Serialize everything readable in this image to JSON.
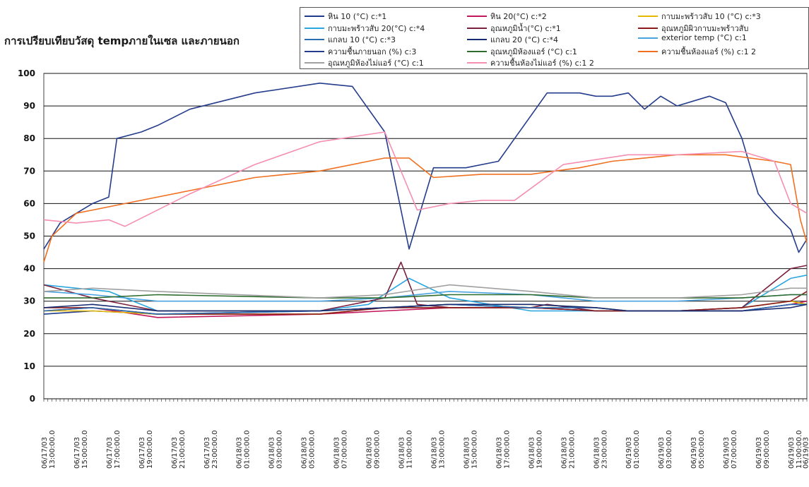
{
  "chart_data": {
    "type": "line",
    "title": "การเปรียบเทียบวัสดุ tempภายในเซล และภายนอก",
    "xlabel": "",
    "ylabel": "",
    "ylim": [
      0,
      100
    ],
    "yticks": [
      0,
      10,
      20,
      30,
      40,
      50,
      60,
      70,
      80,
      90,
      100
    ],
    "grid": true,
    "legend_position": "top-right",
    "x_range_hours": [
      13,
      60
    ],
    "x_tick_labels": [
      "06/17/03 13:00:00.0",
      "06/17/03 15:00:00.0",
      "06/17/03 17:00:00.0",
      "06/17/03 19:00:00.0",
      "06/17/03 21:00:00.0",
      "06/17/03 23:00:00.0",
      "06/18/03 01:00:00.0",
      "06/18/03 03:00:00.0",
      "06/18/03 05:00:00.0",
      "06/18/03 07:00:00.0",
      "06/18/03 09:00:00.0",
      "06/18/03 11:00:00.0",
      "06/18/03 13:00:00.0",
      "06/18/03 15:00:00.0",
      "06/18/03 17:00:00.0",
      "06/18/03 19:00:00.0",
      "06/18/03 21:00:00.0",
      "06/18/03 23:00:00.0",
      "06/19/03 01:00:00.0",
      "06/19/03 03:00:00.0",
      "06/19/03 05:00:00.0",
      "06/19/03 07:00:00.0",
      "06/19/03 09:00:00.0",
      "06/19/03 11:00:00.0",
      "06/19/03 12:52:33"
    ],
    "series": [
      {
        "name": "หิน 10  (°C) c:*1",
        "color": "#1f3a8a",
        "x": [
          13,
          16,
          20,
          30,
          34,
          38,
          43,
          47,
          49,
          52,
          56,
          59,
          60
        ],
        "values": [
          26,
          27,
          26,
          27,
          28,
          29,
          28,
          27,
          27,
          27,
          27,
          29,
          29
        ]
      },
      {
        "name": "หิน 20(°C) c:*2",
        "color": "#c2185b",
        "x": [
          13,
          16,
          20,
          30,
          34,
          38,
          43,
          47,
          49,
          52,
          56,
          59,
          60
        ],
        "values": [
          27,
          28,
          25,
          26,
          27,
          28,
          28,
          27,
          27,
          27,
          27,
          29,
          30
        ]
      },
      {
        "name": "กาบมะพร้าวสับ 10 (°C) c:*3",
        "color": "#e6b800",
        "x": [
          13,
          16,
          20,
          30,
          34,
          38,
          43,
          47,
          49,
          52,
          56,
          59,
          60
        ],
        "values": [
          27,
          27,
          26,
          26,
          28,
          29,
          29,
          28,
          27,
          27,
          28,
          30,
          29
        ]
      },
      {
        "name": "กาบมะพร้าวสับ 20(°C) c:*4",
        "color": "#29a6e0",
        "x": [
          13,
          15,
          17,
          20,
          30,
          33,
          35.5,
          38,
          43,
          47,
          49,
          52,
          56,
          59,
          60
        ],
        "values": [
          35,
          34,
          33,
          27,
          27,
          29,
          37,
          31,
          27,
          27,
          27,
          27,
          28,
          37,
          38
        ]
      },
      {
        "name": "อุณหภูมิน้ำ(°C) c:*1",
        "color": "#7a1f3d",
        "x": [
          13,
          16,
          20,
          30,
          34,
          35,
          36,
          38,
          43,
          44,
          47,
          49,
          52,
          56,
          59,
          60
        ],
        "values": [
          35,
          31,
          27,
          27,
          31,
          42,
          29,
          28,
          28,
          29,
          27,
          27,
          27,
          28,
          40,
          41
        ]
      },
      {
        "name": "อุณหภูมิผิวกาบมะพร้าวสับ",
        "color": "#8b1a1a",
        "x": [
          13,
          16,
          20,
          30,
          34,
          38,
          43,
          47,
          49,
          52,
          56,
          59,
          60
        ],
        "values": [
          28,
          28,
          26,
          26,
          28,
          28,
          28,
          27,
          27,
          27,
          28,
          30,
          33
        ]
      },
      {
        "name": "แกลบ 10 (°C) c:*3",
        "color": "#2a6db0",
        "x": [
          13,
          16,
          20,
          30,
          34,
          38,
          43,
          47,
          49,
          52,
          56,
          59,
          60
        ],
        "values": [
          27,
          28,
          26,
          27,
          28,
          29,
          28,
          28,
          27,
          27,
          27,
          29,
          29
        ]
      },
      {
        "name": "แกลบ 20 (°C) c:*4",
        "color": "#152a70",
        "x": [
          13,
          16,
          20,
          30,
          34,
          38,
          43,
          47,
          49,
          52,
          56,
          59,
          60
        ],
        "values": [
          28,
          29,
          27,
          27,
          28,
          29,
          29,
          28,
          27,
          27,
          27,
          28,
          29
        ]
      },
      {
        "name": "exterior temp (°C) c:1",
        "color": "#4aa3df",
        "x": [
          13,
          16,
          20,
          30,
          34,
          38,
          43,
          47,
          49,
          52,
          56,
          59,
          60
        ],
        "values": [
          33,
          32,
          30,
          30,
          31,
          33,
          32,
          30,
          30,
          30,
          31,
          32,
          32
        ]
      },
      {
        "name": "ความชื้นภายนอก (%) c:3",
        "color": "#243c8c",
        "x": [
          13,
          14,
          15,
          16,
          17,
          17.5,
          19,
          20,
          22,
          26,
          30,
          32,
          34,
          35.5,
          37,
          39,
          41,
          42,
          44,
          46,
          47,
          48,
          49,
          50,
          51,
          52,
          54,
          55,
          56,
          57,
          58,
          59,
          59.5,
          60
        ],
        "values": [
          46,
          54,
          57,
          60,
          62,
          80,
          82,
          84,
          89,
          94,
          97,
          96,
          82,
          46,
          71,
          71,
          73,
          80,
          94,
          94,
          93,
          93,
          94,
          89,
          93,
          90,
          93,
          91,
          80,
          63,
          57,
          52,
          45,
          49
        ]
      },
      {
        "name": "อุณหภูมิห้องแอร์ (°C) c:1",
        "color": "#2e6b2e",
        "x": [
          13,
          16,
          20,
          30,
          34,
          38,
          43,
          47,
          49,
          52,
          56,
          59,
          60
        ],
        "values": [
          31,
          31,
          32,
          31,
          31,
          32,
          32,
          31,
          31,
          31,
          31,
          32,
          32
        ]
      },
      {
        "name": "ความชื้นห้องแอร์ (%) c:1 2",
        "color": "#f07020",
        "x": [
          13,
          13.5,
          15,
          18,
          22,
          26,
          30,
          34,
          35.5,
          37,
          40,
          43,
          46,
          48,
          50,
          52,
          55,
          58,
          59,
          59.6,
          60
        ],
        "values": [
          42,
          50,
          57,
          60,
          64,
          68,
          70,
          74,
          74,
          68,
          69,
          69,
          71,
          73,
          74,
          75,
          75,
          73,
          72,
          55,
          48
        ]
      },
      {
        "name": "อุณหภูมิห้องไม่แอร์ (°C) c:1",
        "color": "#a0a0a0",
        "x": [
          13,
          16,
          20,
          30,
          34,
          38,
          43,
          47,
          49,
          52,
          56,
          59,
          60
        ],
        "values": [
          33,
          34,
          33,
          31,
          32,
          35,
          33,
          31,
          31,
          31,
          32,
          34,
          34
        ]
      },
      {
        "name": "ความชื้นห้องไม่แอร์ (%) c:1 2",
        "color": "#f48fb1",
        "x": [
          13,
          15,
          17,
          18,
          22,
          26,
          30,
          34,
          36,
          38,
          40,
          42,
          45,
          49,
          52,
          56,
          58,
          59,
          60
        ],
        "values": [
          55,
          54,
          55,
          53,
          63,
          72,
          79,
          82,
          58,
          60,
          61,
          61,
          72,
          75,
          75,
          76,
          73,
          60,
          57
        ]
      }
    ]
  }
}
